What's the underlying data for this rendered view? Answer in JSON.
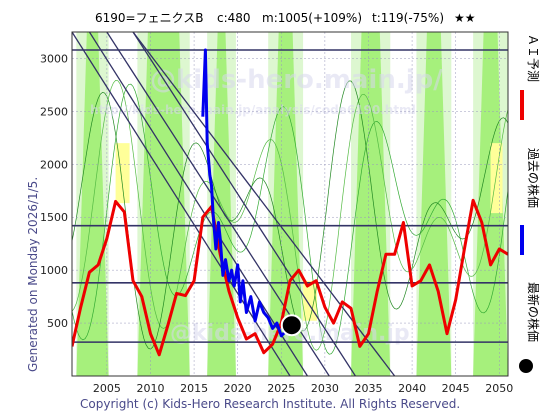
{
  "header": {
    "code_name": "6190=フェニクスB",
    "current": "c:480",
    "mid": "m:1005(+109%)",
    "target": "t:119(-75%)",
    "stars": "★★"
  },
  "side_note": "Generated on Monday 2026/1/5.",
  "copyright": "Copyright (c) Kids-Hero Research Institute. All Rights Reserved.",
  "watermarks": [
    "@kids-hero.main.jp/",
    "http://kids-hero.main.jp/analysis/code6190.html",
    "@kids-hero.main.jp"
  ],
  "legend": {
    "forecast": "ＡＩ予測",
    "past": "過去の株価",
    "latest": "最新の株価"
  },
  "colors": {
    "forecast": "#ee0000",
    "past": "#0000ee",
    "latest": "#000000",
    "trend_lines": "#333366",
    "band_green": "#99ee66",
    "band_yellow": "#ffff99",
    "band_lilac": "#e4e4f8",
    "bg_green": "#ddf7d0"
  },
  "chart_data": {
    "type": "line",
    "xlim": [
      2001,
      2051
    ],
    "ylim": [
      0,
      3250
    ],
    "x_ticks": [
      2005,
      2010,
      2015,
      2020,
      2025,
      2030,
      2035,
      2040,
      2045,
      2050
    ],
    "y_ticks": [
      500,
      1000,
      1500,
      2000,
      2500,
      3000
    ],
    "grid": true,
    "series": [
      {
        "name": "ＡＩ予測",
        "x": [
          2001,
          2002,
          2003,
          2004,
          2005,
          2006,
          2007,
          2008,
          2009,
          2010,
          2011,
          2012,
          2013,
          2014,
          2015,
          2016,
          2017,
          2018,
          2019,
          2020,
          2021,
          2022,
          2023,
          2024,
          2025,
          2026,
          2027,
          2028,
          2029,
          2030,
          2031,
          2032,
          2033,
          2034,
          2035,
          2036,
          2037,
          2038,
          2039,
          2040,
          2041,
          2042,
          2043,
          2044,
          2045,
          2046,
          2047,
          2048,
          2049,
          2050,
          2051
        ],
        "y": [
          280,
          650,
          980,
          1050,
          1300,
          1650,
          1550,
          900,
          750,
          400,
          200,
          480,
          780,
          760,
          900,
          1500,
          1600,
          1150,
          800,
          550,
          350,
          400,
          220,
          300,
          500,
          900,
          1000,
          850,
          900,
          650,
          500,
          700,
          640,
          280,
          400,
          800,
          1150,
          1150,
          1450,
          850,
          900,
          1050,
          800,
          400,
          720,
          1200,
          1660,
          1450,
          1050,
          1200,
          1150
        ]
      },
      {
        "name": "過去の株価",
        "x": [
          2016,
          2016.3,
          2016.5,
          2016.8,
          2017,
          2017.2,
          2017.5,
          2017.8,
          2018,
          2018.3,
          2018.6,
          2019,
          2019.3,
          2019.6,
          2020,
          2020.3,
          2020.6,
          2021,
          2021.5,
          2022,
          2022.5,
          2023,
          2023.5,
          2024,
          2024.5,
          2025,
          2025.5,
          2026
        ],
        "y": [
          2450,
          3080,
          2200,
          1900,
          1800,
          1500,
          1200,
          1450,
          1300,
          950,
          1100,
          900,
          1000,
          850,
          1050,
          700,
          900,
          600,
          750,
          520,
          700,
          600,
          550,
          450,
          500,
          380,
          420,
          480
        ]
      }
    ],
    "latest": {
      "name": "最新の株価",
      "x": 2026.2,
      "y": 480
    },
    "horizontal_lines": [
      3080,
      1420,
      880,
      320
    ],
    "trend_lines": [
      {
        "x": [
          2001,
          2026
        ],
        "y": [
          3250,
          0
        ]
      },
      {
        "x": [
          2003,
          2028
        ],
        "y": [
          3250,
          0
        ]
      },
      {
        "x": [
          2005,
          2030.5
        ],
        "y": [
          3250,
          0
        ]
      },
      {
        "x": [
          2008,
          2033.5
        ],
        "y": [
          3250,
          0
        ]
      },
      {
        "x": [
          2008,
          2038
        ],
        "y": [
          3250,
          0
        ]
      }
    ]
  }
}
